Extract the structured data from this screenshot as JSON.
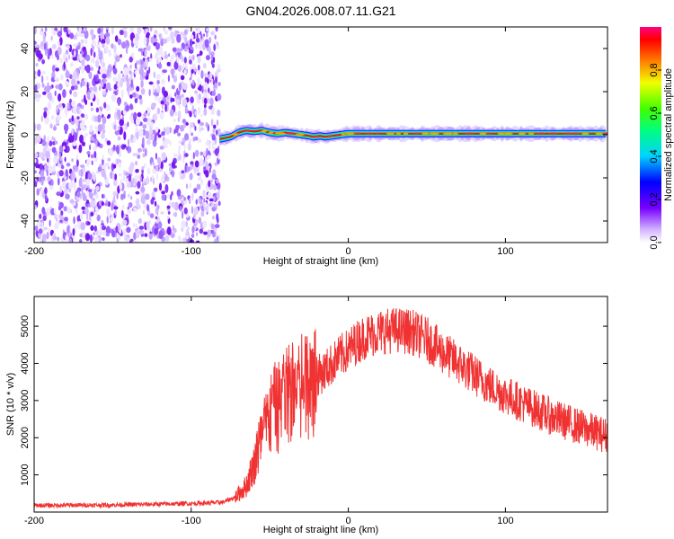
{
  "chart_data": [
    {
      "type": "heatmap",
      "title": "GN04.2026.008.07.11.G21",
      "xlabel": "Height of straight line (km)",
      "ylabel": "Frequency (Hz)",
      "xlim": [
        -200,
        165
      ],
      "ylim": [
        -50,
        50
      ],
      "xticks": [
        "-200",
        "-100",
        "0",
        "100"
      ],
      "xtick_values": [
        -200,
        -100,
        0,
        100
      ],
      "yticks": [
        "-40",
        "-20",
        "0",
        "20",
        "40"
      ],
      "ytick_values": [
        -40,
        -20,
        0,
        20,
        40
      ],
      "colorbar": {
        "label": "Normalized spectral amplitude",
        "range": [
          0,
          1
        ],
        "ticks": [
          "0.0",
          "0.2",
          "0.4",
          "0.6",
          "0.8"
        ],
        "tick_values": [
          0,
          0.2,
          0.4,
          0.6,
          0.8
        ]
      },
      "noise_region_x": [
        -200,
        -82
      ],
      "signal_track": {
        "x": [
          -82,
          -75,
          -70,
          -65,
          -60,
          -55,
          -50,
          -45,
          -40,
          -35,
          -30,
          -25,
          -22,
          -18,
          -15,
          -10,
          -5,
          0,
          10,
          20,
          40,
          60,
          80,
          100,
          120,
          140,
          165
        ],
        "frequency": [
          -2,
          -1,
          1,
          2,
          1.5,
          2,
          1,
          0.5,
          1,
          0.5,
          0,
          -0.5,
          -1,
          -0.5,
          -1,
          -0.5,
          0,
          0.5,
          0.5,
          0.5,
          0.5,
          0.5,
          0.5,
          0.5,
          0.5,
          0.5,
          0.5
        ]
      }
    },
    {
      "type": "line",
      "xlabel": "Height of straight line (km)",
      "ylabel": "SNR (10 * v/v)",
      "xlim": [
        -200,
        165
      ],
      "ylim": [
        0,
        5800
      ],
      "xticks": [
        "-200",
        "-100",
        "0",
        "100"
      ],
      "xtick_values": [
        -200,
        -100,
        0,
        100
      ],
      "yticks": [
        "1000",
        "2000",
        "3000",
        "4000",
        "5000"
      ],
      "ytick_values": [
        1000,
        2000,
        3000,
        4000,
        5000
      ],
      "color": "#f03232",
      "series_envelope": {
        "x": [
          -200,
          -150,
          -100,
          -80,
          -72,
          -65,
          -60,
          -55,
          -50,
          -45,
          -40,
          -35,
          -30,
          -25,
          -20,
          -15,
          -10,
          -5,
          0,
          5,
          10,
          20,
          30,
          40,
          50,
          60,
          70,
          80,
          90,
          100,
          110,
          120,
          130,
          140,
          150,
          165
        ],
        "y": [
          180,
          190,
          230,
          260,
          400,
          700,
          1300,
          2000,
          2600,
          2800,
          3100,
          3300,
          3400,
          3550,
          3650,
          3800,
          4000,
          4200,
          4350,
          4550,
          4700,
          4850,
          4900,
          4850,
          4650,
          4300,
          4000,
          3700,
          3400,
          3150,
          2950,
          2750,
          2550,
          2400,
          2250,
          2050
        ]
      }
    }
  ]
}
